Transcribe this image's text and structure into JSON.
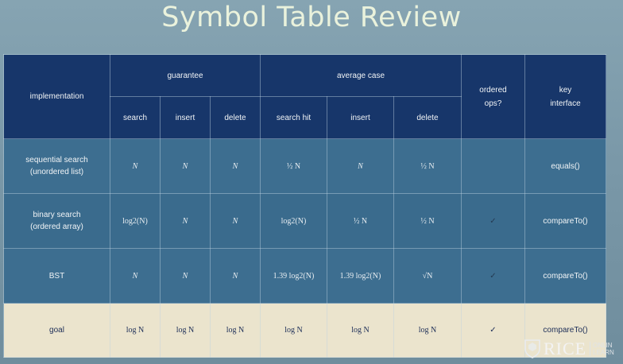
{
  "title": "Symbol Table Review",
  "header": {
    "implementation": "implementation",
    "guarantee": "guarantee",
    "average_case": "average case",
    "ordered_ops_1": "ordered",
    "ordered_ops_2": "ops?",
    "key_interface_1": "key",
    "key_interface_2": "interface",
    "guarantee_cols": [
      "search",
      "insert",
      "delete"
    ],
    "average_cols": [
      "search hit",
      "insert",
      "delete"
    ]
  },
  "rows": [
    {
      "label_1": "sequential search",
      "label_2": "(unordered list)",
      "g_search": "N",
      "g_insert": "N",
      "g_delete": "N",
      "a_search_hit": "½ N",
      "a_insert": "N",
      "a_delete": "½ N",
      "ordered": "",
      "interface": "equals()"
    },
    {
      "label_1": "binary search",
      "label_2": "(ordered array)",
      "g_search": "log2(N)",
      "g_insert": "N",
      "g_delete": "N",
      "a_search_hit": "log2(N)",
      "a_insert": "½ N",
      "a_delete": "½ N",
      "ordered": "✓",
      "interface": "compareTo()"
    },
    {
      "label_1": "BST",
      "label_2": "",
      "g_search": "N",
      "g_insert": "N",
      "g_delete": "N",
      "a_search_hit": "1.39 log2(N)",
      "a_insert": "1.39 log2(N)",
      "a_delete": "√N",
      "ordered": "✓",
      "interface": "compareTo()"
    }
  ],
  "goal": {
    "label": "goal",
    "g_search": "log N",
    "g_insert": "log N",
    "g_delete": "log N",
    "a_search_hit": "log N",
    "a_insert": "log N",
    "a_delete": "log N",
    "ordered": "✓",
    "interface": "compareTo()"
  },
  "logo": {
    "word": "RICE",
    "sub_1": "ONLIN",
    "sub_2": "LEARN"
  },
  "colors": {
    "header_bg": "#17366a",
    "row_bg": "#3a6b8d",
    "goal_bg": "#ebe4cd",
    "title_color": "#eaf2dc"
  }
}
